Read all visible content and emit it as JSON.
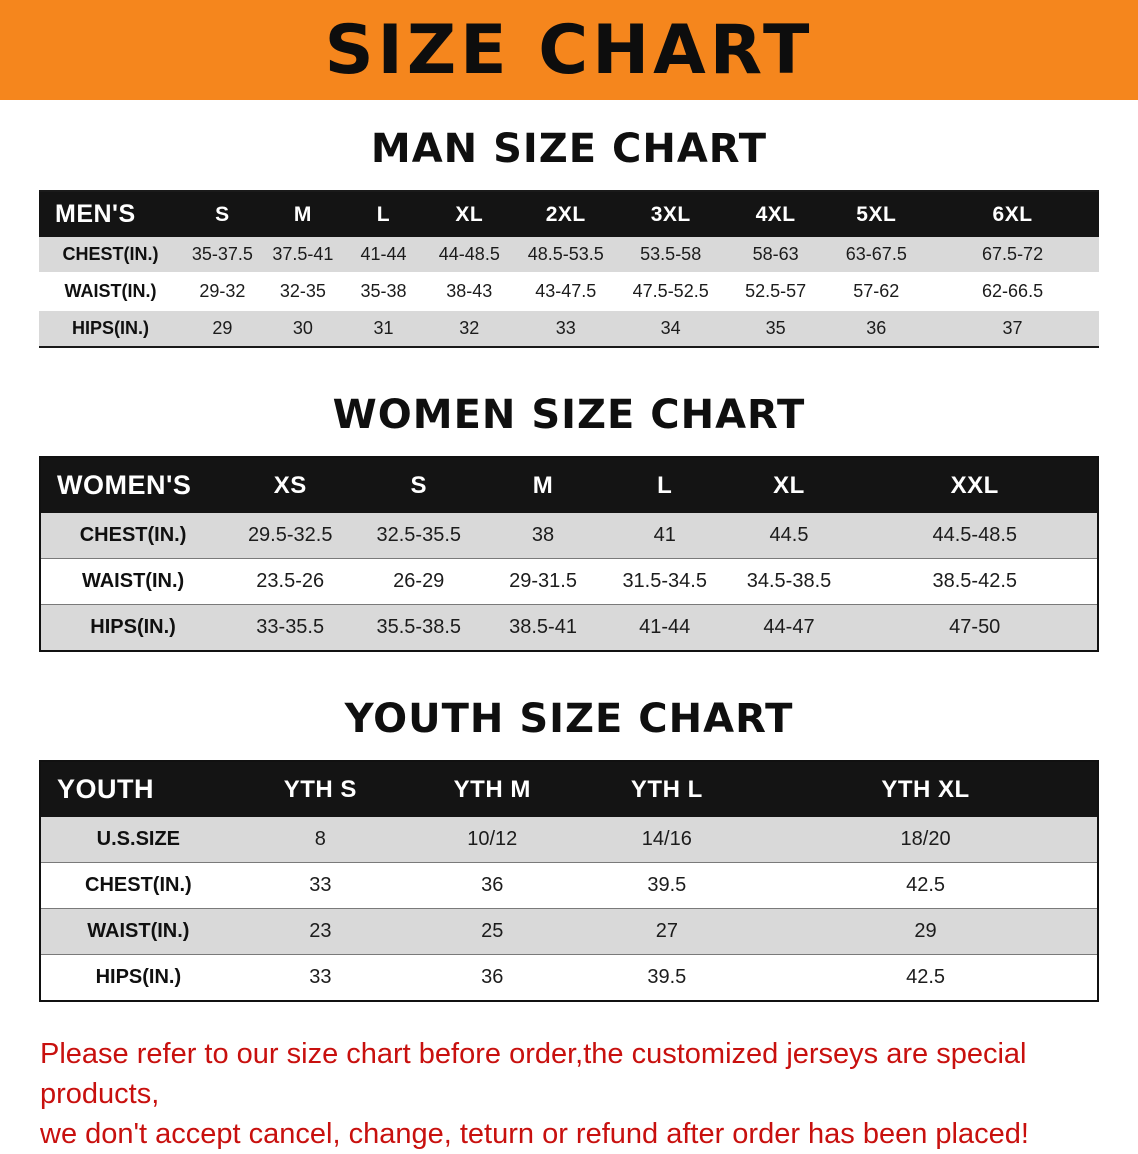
{
  "banner": {
    "title": "SIZE CHART",
    "bg_color": "#F5861D"
  },
  "sections": [
    {
      "id": "men",
      "heading": "MAN SIZE CHART",
      "table": {
        "header": [
          "MEN'S",
          "S",
          "M",
          "L",
          "XL",
          "2XL",
          "3XL",
          "4XL",
          "5XL",
          "6XL"
        ],
        "rows": [
          [
            "CHEST(IN.)",
            "35-37.5",
            "37.5-41",
            "41-44",
            "44-48.5",
            "48.5-53.5",
            "53.5-58",
            "58-63",
            "63-67.5",
            "67.5-72"
          ],
          [
            "WAIST(IN.)",
            "29-32",
            "32-35",
            "35-38",
            "38-43",
            "43-47.5",
            "47.5-52.5",
            "52.5-57",
            "57-62",
            "62-66.5"
          ],
          [
            "HIPS(IN.)",
            "29",
            "30",
            "31",
            "32",
            "33",
            "34",
            "35",
            "36",
            "37"
          ]
        ]
      }
    },
    {
      "id": "women",
      "heading": "WOMEN SIZE CHART",
      "table": {
        "header": [
          "WOMEN'S",
          "XS",
          "S",
          "M",
          "L",
          "XL",
          "XXL"
        ],
        "rows": [
          [
            "CHEST(IN.)",
            "29.5-32.5",
            "32.5-35.5",
            "38",
            "41",
            "44.5",
            "44.5-48.5"
          ],
          [
            "WAIST(IN.)",
            "23.5-26",
            "26-29",
            "29-31.5",
            "31.5-34.5",
            "34.5-38.5",
            "38.5-42.5"
          ],
          [
            "HIPS(IN.)",
            "33-35.5",
            "35.5-38.5",
            "38.5-41",
            "41-44",
            "44-47",
            "47-50"
          ]
        ]
      }
    },
    {
      "id": "youth",
      "heading": "YOUTH SIZE CHART",
      "table": {
        "header": [
          "YOUTH",
          "YTH S",
          "YTH M",
          "YTH L",
          "YTH XL"
        ],
        "rows": [
          [
            "U.S.SIZE",
            "8",
            "10/12",
            "14/16",
            "18/20"
          ],
          [
            "CHEST(IN.)",
            "33",
            "36",
            "39.5",
            "42.5"
          ],
          [
            "WAIST(IN.)",
            "23",
            "25",
            "27",
            "29"
          ],
          [
            "HIPS(IN.)",
            "33",
            "36",
            "39.5",
            "42.5"
          ]
        ]
      }
    }
  ],
  "disclaimer": {
    "color": "#C8100E",
    "line1": "Please refer to our size chart before order,the customized jerseys are special products,",
    "line2": "we don't accept cancel, change, teturn or refund after order has been placed!"
  }
}
